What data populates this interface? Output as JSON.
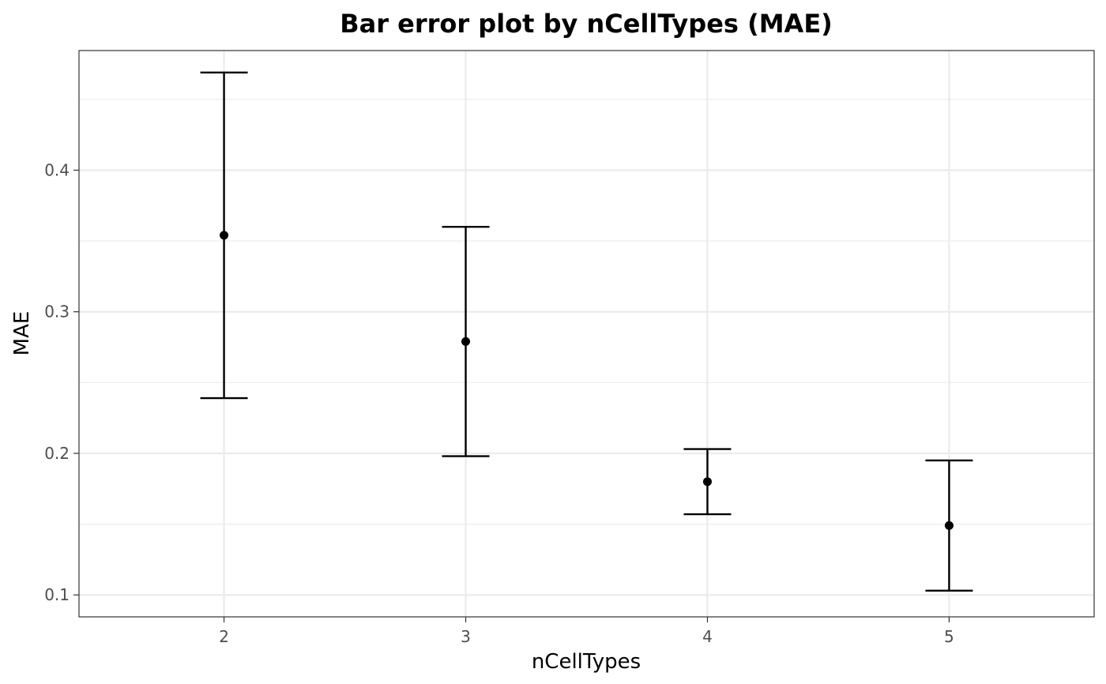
{
  "chart_data": {
    "type": "errorbar",
    "title": "Bar error plot by nCellTypes (MAE)",
    "xlabel": "nCellTypes",
    "ylabel": "MAE",
    "categories": [
      "2",
      "3",
      "4",
      "5"
    ],
    "mean": [
      0.354,
      0.279,
      0.18,
      0.149
    ],
    "lower": [
      0.239,
      0.198,
      0.157,
      0.103
    ],
    "upper": [
      0.469,
      0.36,
      0.203,
      0.195
    ],
    "yticks": [
      0.1,
      0.2,
      0.3,
      0.4
    ],
    "ytick_labels": [
      "0.1",
      "0.2",
      "0.3",
      "0.4"
    ],
    "ylim": [
      0.0845,
      0.4845
    ],
    "grid": true,
    "colors": {
      "marks": "#000000",
      "grid": "#ebebeb",
      "panel_border": "#333333",
      "tick_text": "#4d4d4d"
    }
  }
}
